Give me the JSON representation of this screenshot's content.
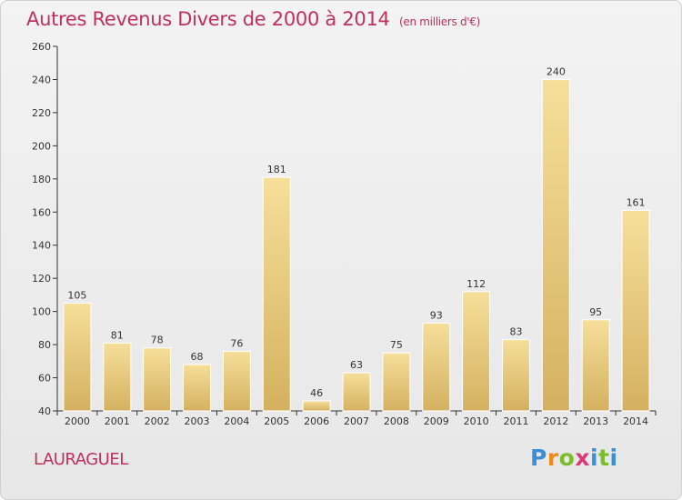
{
  "header": {
    "title": "Autres Revenus Divers de 2000 à 2014",
    "subtitle": "(en milliers d'€)"
  },
  "footer": {
    "place": "LAURAGUEL",
    "brand": [
      "P",
      "r",
      "o",
      "x",
      "i",
      "t",
      "i"
    ]
  },
  "chart_data": {
    "type": "bar",
    "title": "Autres Revenus Divers de 2000 à 2014",
    "subtitle": "(en milliers d'€)",
    "categories": [
      "2000",
      "2001",
      "2002",
      "2003",
      "2004",
      "2005",
      "2006",
      "2007",
      "2008",
      "2009",
      "2010",
      "2011",
      "2012",
      "2013",
      "2014"
    ],
    "values": [
      105,
      81,
      78,
      68,
      76,
      181,
      46,
      63,
      75,
      93,
      112,
      83,
      240,
      95,
      161
    ],
    "xlabel": "",
    "ylabel": "",
    "ylim": [
      40,
      260
    ],
    "yticks": [
      40,
      60,
      80,
      100,
      120,
      140,
      160,
      180,
      200,
      220,
      240,
      260
    ],
    "grid": false,
    "legend": "none",
    "colors": {
      "bar_light": "#f6df9a",
      "bar_dark": "#d4b160",
      "title": "#c0305a",
      "axis": "#333333"
    }
  }
}
